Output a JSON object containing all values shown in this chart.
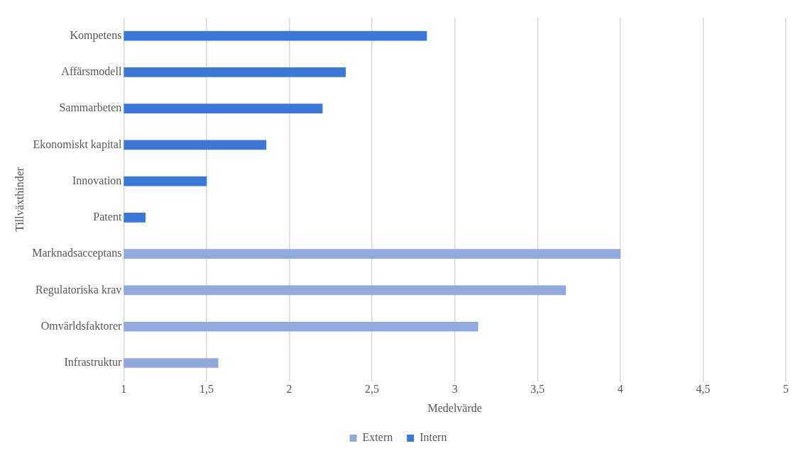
{
  "chart_data": {
    "type": "bar",
    "orientation": "horizontal",
    "stacked": true,
    "categories": [
      "Kompetens",
      "Affärsmodell",
      "Sammarbeten",
      "Ekonomiskt kapital",
      "Innovation",
      "Patent",
      "Marknadsacceptans",
      "Regulatoriska krav",
      "Omvärldsfaktorer",
      "Infrastruktur"
    ],
    "series": [
      {
        "name": "Extern",
        "color": "#8faadc",
        "values": [
          null,
          null,
          null,
          null,
          null,
          null,
          4.0,
          3.67,
          3.14,
          1.57
        ]
      },
      {
        "name": "Intern",
        "color": "#3c78d8",
        "values": [
          2.83,
          2.34,
          2.2,
          1.86,
          1.5,
          1.13,
          null,
          null,
          null,
          null
        ]
      }
    ],
    "xlim": [
      1,
      5
    ],
    "xticks": [
      1,
      {
        "value": 1.5,
        "label": "1,5"
      },
      2,
      {
        "value": 2.5,
        "label": "2,5"
      },
      3,
      {
        "value": 3.5,
        "label": "3,5"
      },
      4,
      {
        "value": 4.5,
        "label": "4,5"
      },
      5
    ],
    "xlabel": "Medelvärde",
    "ylabel": "Tillväxthinder",
    "grid": "x",
    "legend": "bottom"
  }
}
